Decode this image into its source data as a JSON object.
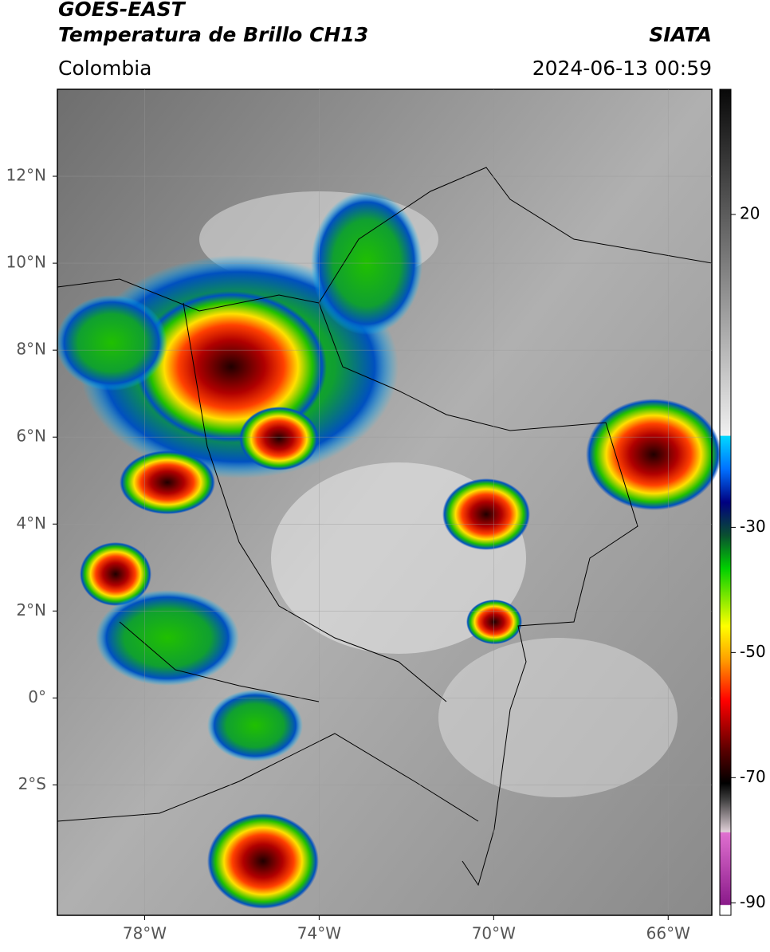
{
  "map": {
    "title": "GOES-EAST",
    "subtitle": "Temperatura de Brillo CH13",
    "source": "SIATA",
    "region": "Colombia",
    "timestamp": "2024-06-13 00:59",
    "xlim": [
      -80,
      -65
    ],
    "ylim": [
      -5,
      14
    ],
    "xticks": [
      {
        "value": -78,
        "label": "78°W"
      },
      {
        "value": -74,
        "label": "74°W"
      },
      {
        "value": -70,
        "label": "70°W"
      },
      {
        "value": -66,
        "label": "66°W"
      }
    ],
    "yticks": [
      {
        "value": 12,
        "label": "12°N"
      },
      {
        "value": 10,
        "label": "10°N"
      },
      {
        "value": 8,
        "label": "8°N"
      },
      {
        "value": 6,
        "label": "6°N"
      },
      {
        "value": 4,
        "label": "4°N"
      },
      {
        "value": 2,
        "label": "2°N"
      },
      {
        "value": 0,
        "label": "0°"
      },
      {
        "value": -2,
        "label": "2°S"
      }
    ],
    "colorbar": {
      "lim": [
        -92,
        40
      ],
      "ticks": [
        20,
        -30,
        -50,
        -70,
        -90
      ]
    }
  }
}
